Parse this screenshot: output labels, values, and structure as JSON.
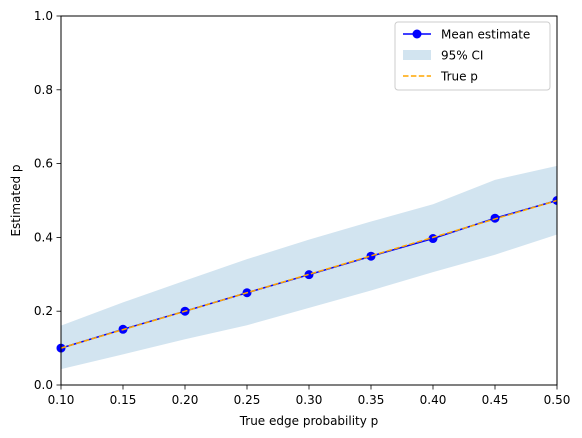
{
  "chart_data": {
    "type": "line",
    "xlabel": "True edge probability p",
    "ylabel": "Estimated p",
    "xlim": [
      0.1,
      0.5
    ],
    "ylim": [
      0.0,
      1.0
    ],
    "xticks": [
      0.1,
      0.15,
      0.2,
      0.25,
      0.3,
      0.35,
      0.4,
      0.45,
      0.5
    ],
    "xtick_labels": [
      "0.10",
      "0.15",
      "0.20",
      "0.25",
      "0.30",
      "0.35",
      "0.40",
      "0.45",
      "0.50"
    ],
    "yticks": [
      0.0,
      0.2,
      0.4,
      0.6,
      0.8,
      1.0
    ],
    "ytick_labels": [
      "0.0",
      "0.2",
      "0.4",
      "0.6",
      "0.8",
      "1.0"
    ],
    "grid": false,
    "legend_position": "top-right",
    "x": [
      0.1,
      0.15,
      0.2,
      0.25,
      0.3,
      0.35,
      0.4,
      0.45,
      0.5
    ],
    "series": [
      {
        "name": "Mean estimate",
        "kind": "line-marker",
        "color": "#0000ff",
        "values": [
          0.1,
          0.151,
          0.2,
          0.25,
          0.299,
          0.349,
          0.397,
          0.452,
          0.5
        ]
      },
      {
        "name": "95% CI",
        "kind": "band",
        "color": "#1f77b4",
        "lower": [
          0.043,
          0.083,
          0.124,
          0.162,
          0.209,
          0.256,
          0.306,
          0.353,
          0.408
        ],
        "upper": [
          0.161,
          0.224,
          0.283,
          0.341,
          0.394,
          0.443,
          0.49,
          0.556,
          0.594
        ]
      },
      {
        "name": "True p",
        "kind": "dashed-line",
        "color": "#ffa500",
        "values": [
          0.1,
          0.15,
          0.2,
          0.25,
          0.3,
          0.35,
          0.4,
          0.45,
          0.5
        ]
      }
    ]
  }
}
